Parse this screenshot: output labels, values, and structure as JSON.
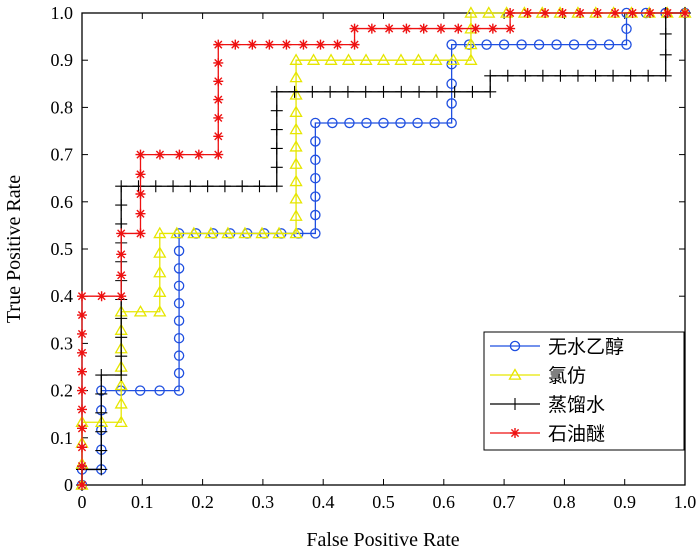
{
  "chart_data": {
    "type": "line",
    "xlabel": "False Positive Rate",
    "ylabel": "True Positive Rate",
    "xlim": [
      0,
      1
    ],
    "ylim": [
      0,
      1
    ],
    "xticks": [
      "0",
      "0.1",
      "0.2",
      "0.3",
      "0.4",
      "0.5",
      "0.6",
      "0.7",
      "0.8",
      "0.9",
      "1.0"
    ],
    "yticks": [
      "0",
      "0.1",
      "0.2",
      "0.3",
      "0.4",
      "0.5",
      "0.6",
      "0.7",
      "0.8",
      "0.9",
      "1.0"
    ],
    "grid": false,
    "legend_position": "bottom-right",
    "series": [
      {
        "name": "无水乙醇",
        "color": "#1f4fe0",
        "marker": "circle",
        "points": [
          [
            0,
            0
          ],
          [
            0,
            0.033
          ],
          [
            0.032,
            0.033
          ],
          [
            0.032,
            0.2
          ],
          [
            0.161,
            0.2
          ],
          [
            0.161,
            0.533
          ],
          [
            0.387,
            0.533
          ],
          [
            0.387,
            0.767
          ],
          [
            0.613,
            0.767
          ],
          [
            0.613,
            0.933
          ],
          [
            0.903,
            0.933
          ],
          [
            0.903,
            1.0
          ],
          [
            1.0,
            1.0
          ]
        ]
      },
      {
        "name": "氯仿",
        "color": "#e6e600",
        "marker": "triangle",
        "points": [
          [
            0,
            0
          ],
          [
            0,
            0.133
          ],
          [
            0.065,
            0.133
          ],
          [
            0.065,
            0.367
          ],
          [
            0.129,
            0.367
          ],
          [
            0.129,
            0.533
          ],
          [
            0.355,
            0.533
          ],
          [
            0.355,
            0.9
          ],
          [
            0.645,
            0.9
          ],
          [
            0.645,
            1.0
          ],
          [
            1.0,
            1.0
          ]
        ]
      },
      {
        "name": "蒸馏水",
        "color": "#000000",
        "marker": "plus",
        "points": [
          [
            0,
            0
          ],
          [
            0,
            0.033
          ],
          [
            0.032,
            0.033
          ],
          [
            0.032,
            0.233
          ],
          [
            0.065,
            0.233
          ],
          [
            0.065,
            0.633
          ],
          [
            0.323,
            0.633
          ],
          [
            0.323,
            0.833
          ],
          [
            0.677,
            0.833
          ],
          [
            0.677,
            0.867
          ],
          [
            0.968,
            0.867
          ],
          [
            0.968,
            1.0
          ],
          [
            1.0,
            1.0
          ]
        ]
      },
      {
        "name": "石油醚",
        "color": "#ee1111",
        "marker": "star",
        "points": [
          [
            0,
            0
          ],
          [
            0,
            0.4
          ],
          [
            0.065,
            0.4
          ],
          [
            0.065,
            0.533
          ],
          [
            0.097,
            0.533
          ],
          [
            0.097,
            0.7
          ],
          [
            0.226,
            0.7
          ],
          [
            0.226,
            0.933
          ],
          [
            0.452,
            0.933
          ],
          [
            0.452,
            0.967
          ],
          [
            0.71,
            0.967
          ],
          [
            0.71,
            1.0
          ],
          [
            1.0,
            1.0
          ]
        ]
      }
    ]
  }
}
